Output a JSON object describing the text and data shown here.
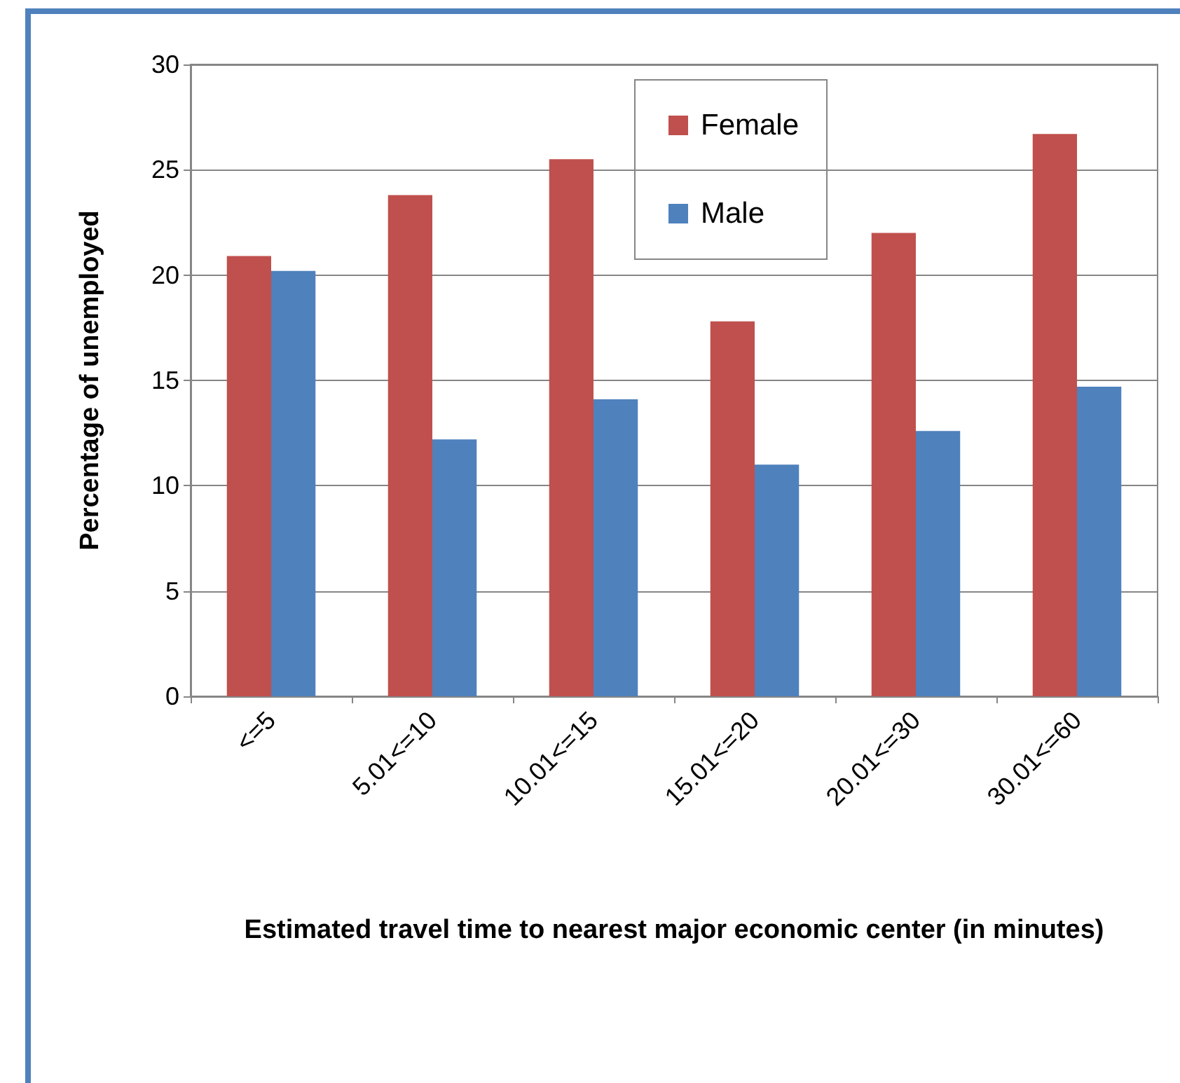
{
  "chart_data": {
    "type": "bar",
    "xlabel": "Estimated travel time to nearest major economic center (in minutes)",
    "ylabel": "Percentage of unemployed",
    "categories": [
      "<=5",
      "5.01<=10",
      "10.01<=15",
      "15.01<=20",
      "20.01<=30",
      "30.01<=60"
    ],
    "series": [
      {
        "name": "Female",
        "color": "#c0504d",
        "values": [
          20.9,
          23.8,
          25.5,
          17.8,
          22.0,
          26.7
        ]
      },
      {
        "name": "Male",
        "color": "#4f81bd",
        "values": [
          20.2,
          12.2,
          14.1,
          11.0,
          12.6,
          14.7
        ]
      }
    ],
    "ylim": [
      0,
      30
    ],
    "yticks": [
      0,
      5,
      10,
      15,
      20,
      25,
      30
    ],
    "grid": "y",
    "legend": "top right"
  }
}
